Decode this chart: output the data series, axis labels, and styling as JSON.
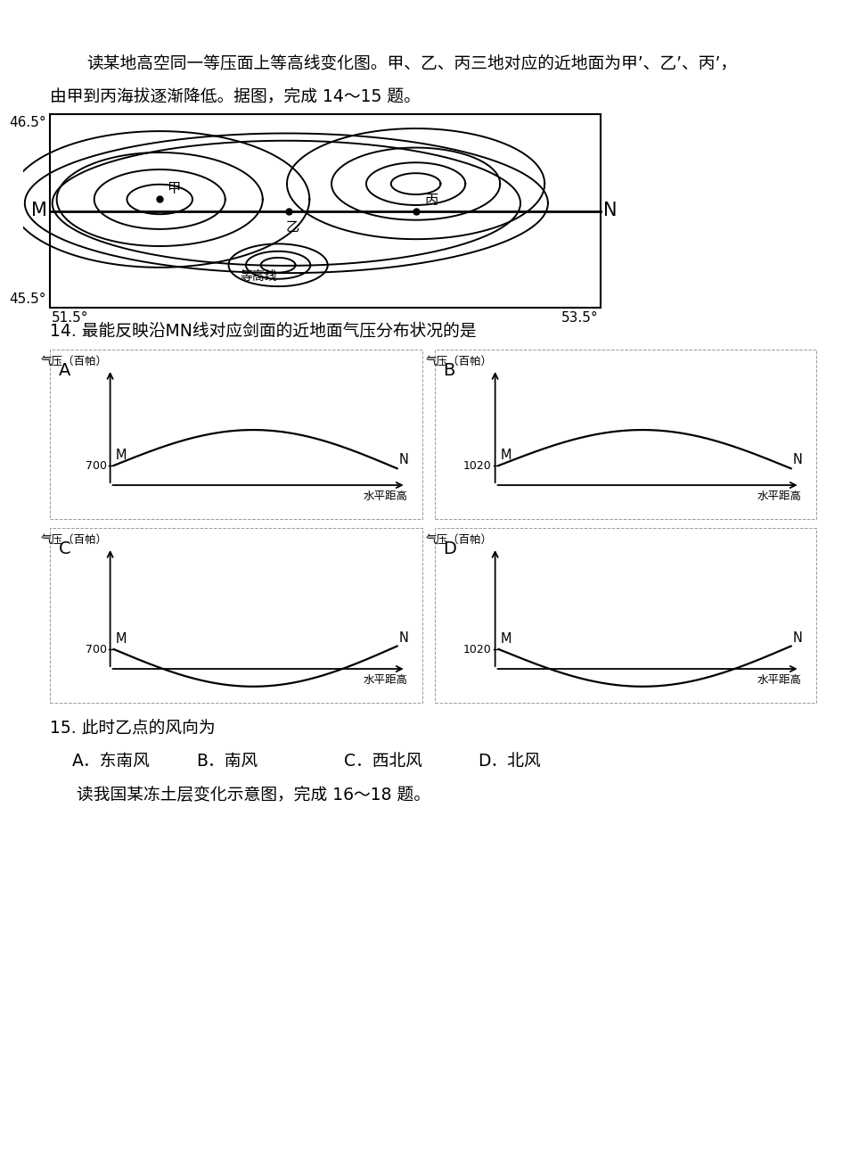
{
  "bg_color": "#ffffff",
  "text_color": "#000000",
  "intro_text1": "读某地高空同一等压面上等高线变化图。甲、乙、丙三地对应的近地面为甲’、乙’、丙’，",
  "intro_text2": "由甲到丙海拔逐渐降低。据图，完成 14～15 题。",
  "map_ylabel_top": "46.5°",
  "map_ylabel_bottom": "45.5°",
  "map_xlabel_left": "51.5°",
  "map_xlabel_right": "53.5°",
  "map_label_M": "M",
  "map_label_N": "N",
  "map_label_jia": "甲",
  "map_label_yi": "乙",
  "map_label_bing": "丙",
  "map_label_dengaoxian": "等高线",
  "q14_text": "14. 最能反映沿MN线对应剑面的近地面气压分布状况的是",
  "q15_text": "15. 此时乙点的风向为",
  "q15_options": [
    "A．东南风",
    "B．南风",
    "C．西北风",
    "D．北风"
  ],
  "q16_text": "读我国某冻土层变化示意图，完成 16～18 题。",
  "panel_ylabel": "气压（百帕）",
  "panel_value_700": "700",
  "panel_value_1020": "1020",
  "panel_xlabel": "水平距高",
  "panel_M": "M",
  "panel_N": "N",
  "panel_labels": [
    "A",
    "B",
    "C",
    "D"
  ]
}
